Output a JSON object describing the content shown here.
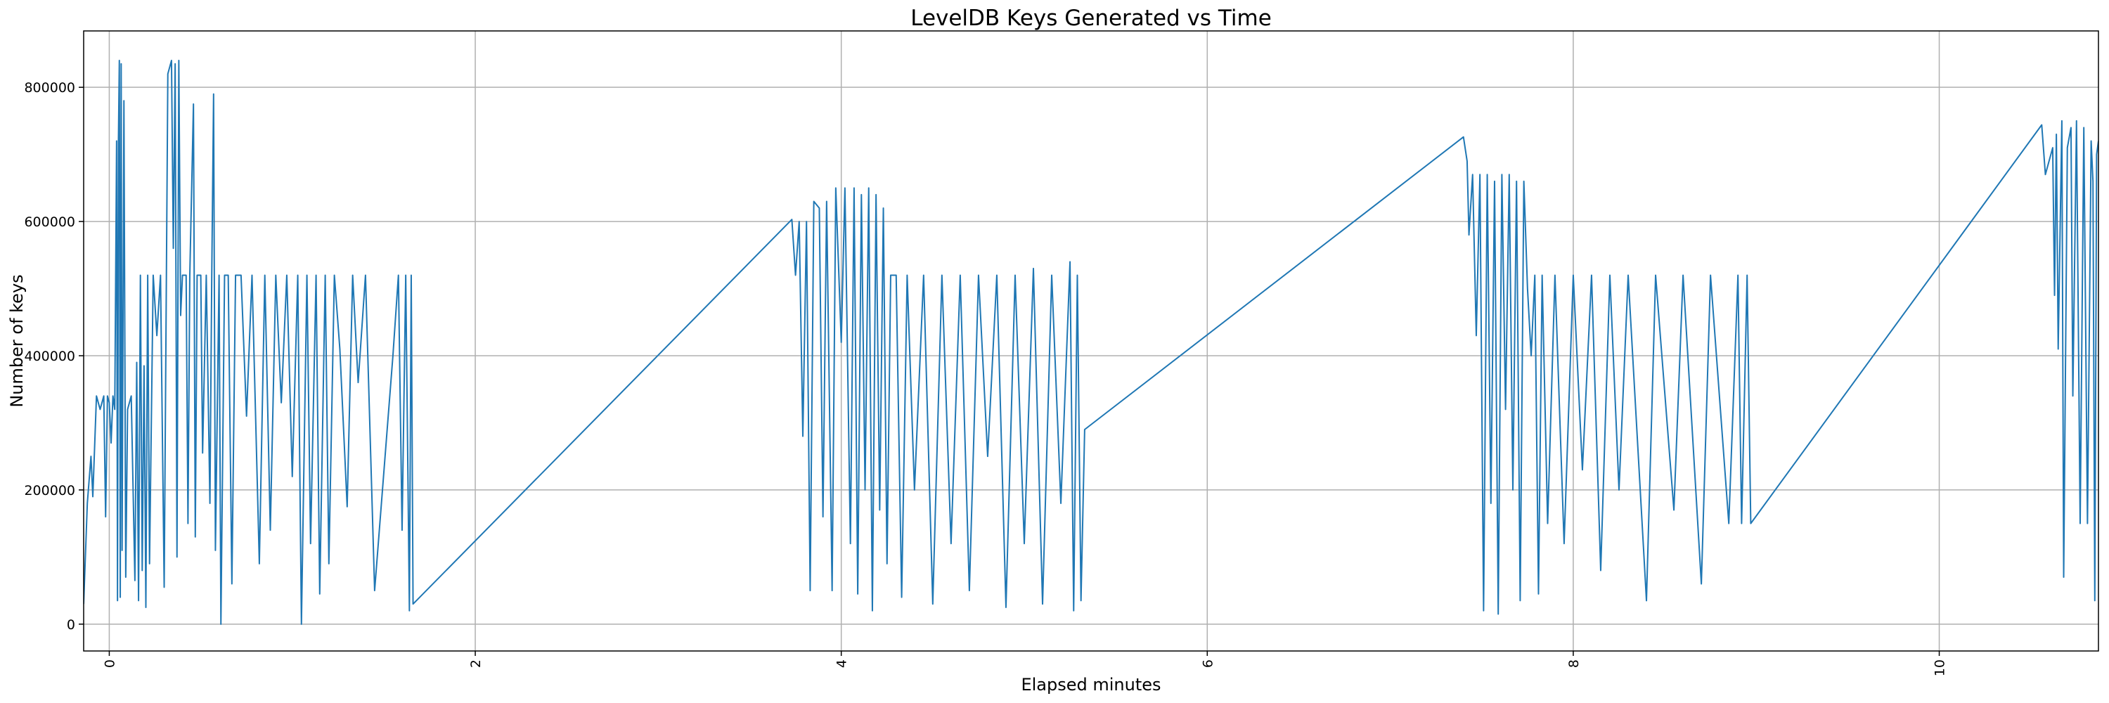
{
  "chart_data": {
    "type": "line",
    "title": "LevelDB Keys Generated vs Time",
    "x_label": "Elapsed minutes",
    "y_label": "Number of keys",
    "color": "#1f77b4",
    "grid": true,
    "xlim": [
      -0.14,
      10.87
    ],
    "ylim": [
      -40000,
      884000
    ],
    "xticks": [
      0,
      2,
      4,
      6,
      8,
      10
    ],
    "yticks": [
      0,
      200000,
      400000,
      600000,
      800000
    ],
    "x": [
      -0.14,
      -0.12,
      -0.1,
      -0.09,
      -0.07,
      -0.05,
      -0.03,
      -0.02,
      -0.01,
      0,
      0.01,
      0.02,
      0.03,
      0.04,
      0.045,
      0.05,
      0.055,
      0.06,
      0.065,
      0.07,
      0.08,
      0.09,
      0.1,
      0.12,
      0.14,
      0.15,
      0.16,
      0.17,
      0.18,
      0.19,
      0.2,
      0.21,
      0.22,
      0.24,
      0.26,
      0.28,
      0.3,
      0.32,
      0.34,
      0.35,
      0.36,
      0.37,
      0.38,
      0.39,
      0.4,
      0.42,
      0.43,
      0.44,
      0.46,
      0.47,
      0.48,
      0.5,
      0.51,
      0.53,
      0.55,
      0.56,
      0.57,
      0.58,
      0.6,
      0.61,
      0.63,
      0.65,
      0.67,
      0.69,
      0.72,
      0.75,
      0.78,
      0.82,
      0.85,
      0.88,
      0.91,
      0.94,
      0.97,
      1,
      1.03,
      1.05,
      1.08,
      1.1,
      1.13,
      1.15,
      1.18,
      1.2,
      1.23,
      1.26,
      1.3,
      1.33,
      1.36,
      1.4,
      1.45,
      1.55,
      1.58,
      1.6,
      1.62,
      1.64,
      1.65,
      1.66,
      3.73,
      3.75,
      3.77,
      3.79,
      3.81,
      3.83,
      3.85,
      3.88,
      3.9,
      3.92,
      3.95,
      3.97,
      4,
      4.02,
      4.05,
      4.07,
      4.09,
      4.11,
      4.13,
      4.15,
      4.17,
      4.19,
      4.21,
      4.23,
      4.25,
      4.27,
      4.3,
      4.33,
      4.36,
      4.4,
      4.45,
      4.5,
      4.55,
      4.6,
      4.65,
      4.7,
      4.75,
      4.8,
      4.85,
      4.9,
      4.95,
      5,
      5.05,
      5.1,
      5.15,
      5.2,
      5.25,
      5.27,
      5.29,
      5.31,
      5.33,
      7.4,
      7.42,
      7.43,
      7.45,
      7.47,
      7.49,
      7.51,
      7.53,
      7.55,
      7.57,
      7.59,
      7.61,
      7.63,
      7.65,
      7.67,
      7.69,
      7.71,
      7.73,
      7.75,
      7.77,
      7.79,
      7.81,
      7.83,
      7.86,
      7.9,
      7.95,
      8,
      8.05,
      8.1,
      8.15,
      8.2,
      8.25,
      8.3,
      8.4,
      8.45,
      8.55,
      8.6,
      8.7,
      8.75,
      8.85,
      8.9,
      8.92,
      8.95,
      8.97,
      10.56,
      10.58,
      10.62,
      10.63,
      10.64,
      10.65,
      10.67,
      10.68,
      10.7,
      10.72,
      10.73,
      10.75,
      10.77,
      10.79,
      10.81,
      10.83,
      10.84,
      10.85,
      10.86,
      10.87
    ],
    "values": [
      30000,
      180000,
      250000,
      190000,
      340000,
      320000,
      340000,
      160000,
      340000,
      330000,
      270000,
      340000,
      320000,
      720000,
      35000,
      720000,
      840000,
      40000,
      835000,
      110000,
      780000,
      70000,
      320000,
      340000,
      65000,
      390000,
      35000,
      520000,
      80000,
      385000,
      25000,
      520000,
      90000,
      520000,
      430000,
      520000,
      55000,
      820000,
      840000,
      560000,
      835000,
      100000,
      840000,
      460000,
      520000,
      520000,
      150000,
      520000,
      775000,
      130000,
      520000,
      520000,
      255000,
      520000,
      180000,
      520000,
      790000,
      110000,
      520000,
      0,
      520000,
      520000,
      60000,
      520000,
      520000,
      310000,
      520000,
      90000,
      520000,
      140000,
      520000,
      330000,
      520000,
      220000,
      520000,
      0,
      520000,
      120000,
      520000,
      45000,
      520000,
      90000,
      520000,
      410000,
      175000,
      520000,
      360000,
      520000,
      50000,
      400000,
      520000,
      140000,
      520000,
      20000,
      520000,
      30000,
      603000,
      520000,
      600000,
      280000,
      600000,
      50000,
      630000,
      620000,
      160000,
      630000,
      50000,
      650000,
      420000,
      650000,
      120000,
      650000,
      45000,
      640000,
      200000,
      650000,
      20000,
      640000,
      170000,
      620000,
      90000,
      520000,
      520000,
      40000,
      520000,
      200000,
      520000,
      30000,
      520000,
      120000,
      520000,
      50000,
      520000,
      250000,
      520000,
      25000,
      520000,
      120000,
      530000,
      30000,
      520000,
      180000,
      540000,
      20000,
      520000,
      35000,
      290000,
      726000,
      690000,
      580000,
      670000,
      430000,
      670000,
      20000,
      670000,
      180000,
      660000,
      15000,
      670000,
      320000,
      670000,
      200000,
      660000,
      35000,
      660000,
      500000,
      400000,
      520000,
      45000,
      520000,
      150000,
      520000,
      120000,
      520000,
      230000,
      520000,
      80000,
      520000,
      200000,
      520000,
      35000,
      520000,
      170000,
      520000,
      60000,
      520000,
      150000,
      520000,
      150000,
      520000,
      150000,
      744000,
      670000,
      710000,
      490000,
      730000,
      410000,
      750000,
      70000,
      710000,
      740000,
      340000,
      750000,
      150000,
      740000,
      150000,
      720000,
      660000,
      35000,
      700000,
      720000
    ]
  }
}
